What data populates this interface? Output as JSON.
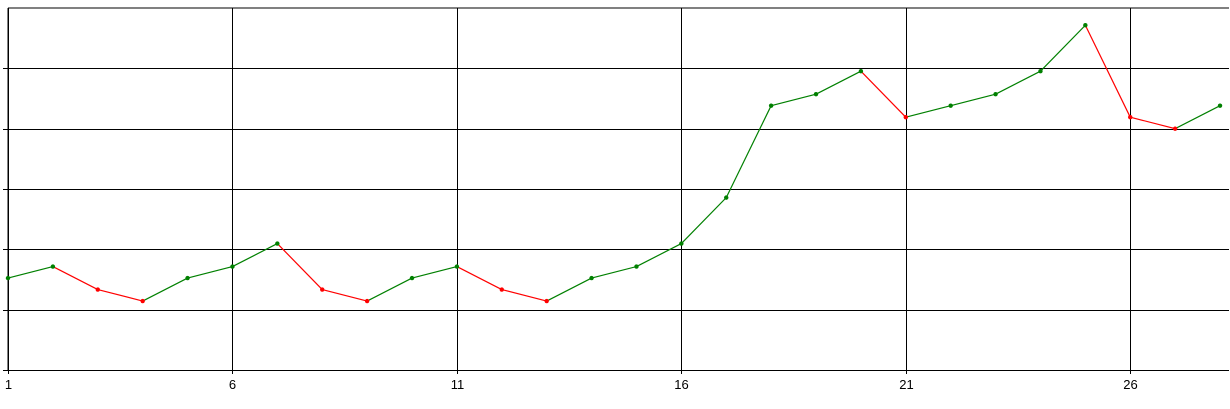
{
  "chart_data": {
    "type": "line",
    "x": [
      1,
      2,
      3,
      4,
      5,
      6,
      7,
      8,
      9,
      10,
      11,
      12,
      13,
      14,
      15,
      16,
      17,
      18,
      19,
      20,
      21,
      22,
      23,
      24,
      25,
      26,
      27,
      28
    ],
    "values": [
      9,
      10,
      8,
      7,
      9,
      10,
      12,
      8,
      7,
      9,
      10,
      8,
      7,
      9,
      10,
      12,
      16,
      24,
      25,
      27,
      23,
      24,
      25,
      27,
      31,
      23,
      22,
      24
    ],
    "xticks": [
      1,
      6,
      11,
      16,
      21,
      26
    ],
    "xlim": [
      1,
      28.2
    ],
    "ylim": [
      1,
      32.5
    ],
    "grid": true,
    "colors": {
      "up": "#008000",
      "down": "#ff0000",
      "grid": "#000000",
      "background": "#ffffff"
    },
    "title": "",
    "xlabel": "",
    "ylabel": ""
  }
}
